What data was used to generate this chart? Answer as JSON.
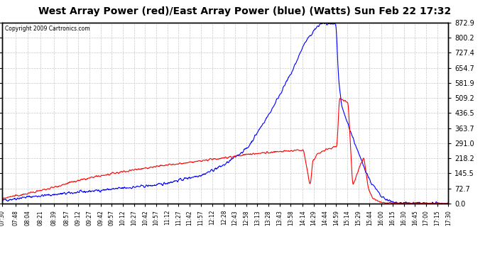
{
  "title": "West Array Power (red)/East Array Power (blue) (Watts) Sun Feb 22 17:32",
  "copyright": "Copyright 2009 Cartronics.com",
  "title_fontsize": 10,
  "background_color": "#ffffff",
  "plot_bg_color": "#ffffff",
  "grid_color": "#c8c8c8",
  "grid_style": "--",
  "blue_color": "#0000ff",
  "red_color": "#ff0000",
  "ylim": [
    0.0,
    872.9
  ],
  "yticks": [
    0.0,
    72.7,
    145.5,
    218.2,
    291.0,
    363.7,
    436.5,
    509.2,
    581.9,
    654.7,
    727.4,
    800.2,
    872.9
  ],
  "xtick_labels": [
    "07:30",
    "07:48",
    "08:04",
    "08:21",
    "08:39",
    "08:57",
    "09:12",
    "09:27",
    "09:42",
    "09:57",
    "10:12",
    "10:27",
    "10:42",
    "10:57",
    "11:12",
    "11:27",
    "11:42",
    "11:57",
    "12:12",
    "12:28",
    "12:43",
    "12:58",
    "13:13",
    "13:28",
    "13:43",
    "13:58",
    "14:14",
    "14:29",
    "14:44",
    "14:59",
    "15:14",
    "15:29",
    "15:44",
    "16:00",
    "16:15",
    "16:30",
    "16:45",
    "17:00",
    "17:15",
    "17:30"
  ]
}
